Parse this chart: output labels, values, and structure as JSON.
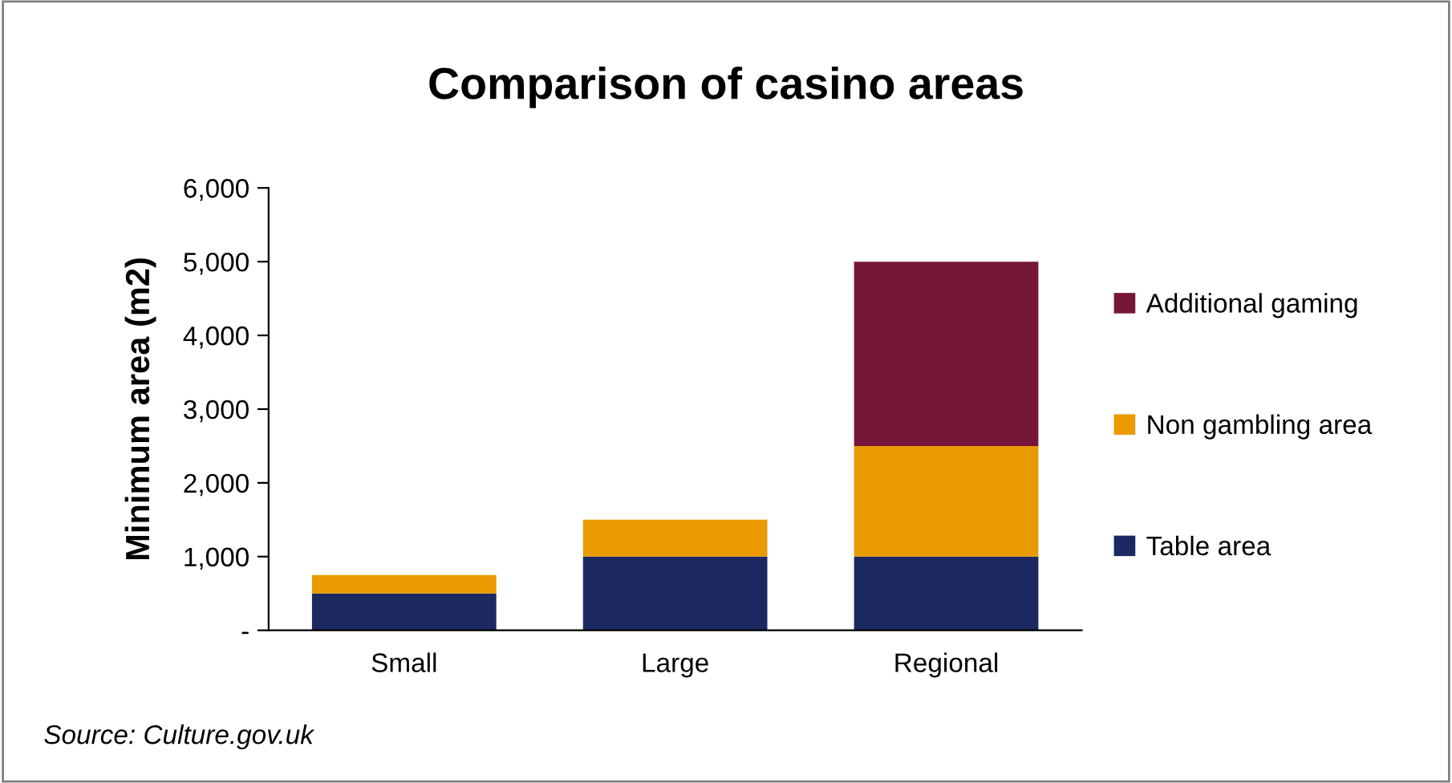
{
  "chart_data": {
    "type": "bar",
    "title": "Comparison of casino areas",
    "ylabel": "Minimum area (m2)",
    "categories": [
      "Small",
      "Large",
      "Regional"
    ],
    "stacked": true,
    "series": [
      {
        "name": "Table area",
        "color": "#1c2960",
        "values": [
          500,
          1000,
          1000
        ]
      },
      {
        "name": "Non gambling area",
        "color": "#e89a00",
        "values": [
          250,
          500,
          1500
        ]
      },
      {
        "name": "Additional gaming",
        "color": "#761538",
        "values": [
          null,
          null,
          2500
        ]
      }
    ],
    "ylim": [
      0,
      6000
    ],
    "yticks": [
      {
        "value": 0,
        "label": "-"
      },
      {
        "value": 1000,
        "label": "1,000"
      },
      {
        "value": 2000,
        "label": "2,000"
      },
      {
        "value": 3000,
        "label": "3,000"
      },
      {
        "value": 4000,
        "label": "4,000"
      },
      {
        "value": 5000,
        "label": "5,000"
      },
      {
        "value": 6000,
        "label": "6,000"
      }
    ],
    "grid": false,
    "legend": "right",
    "annotations": [
      "Source: Culture.gov.uk"
    ]
  }
}
